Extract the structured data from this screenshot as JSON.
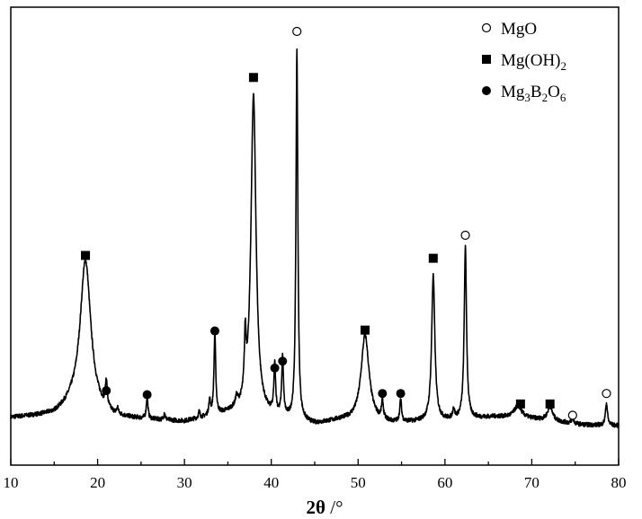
{
  "chart_data": {
    "type": "line",
    "title": "",
    "xlabel": "2θ /°",
    "xlabel_bold_part": "2θ",
    "xlabel_rest": " /°",
    "ylabel": "",
    "xlim": [
      10,
      80
    ],
    "ylim": [
      0,
      100
    ],
    "xticks": [
      10,
      20,
      30,
      40,
      50,
      60,
      70,
      80
    ],
    "y_ticks_shown": false,
    "grid": false,
    "legend_position": "top-right",
    "color": "#000000",
    "legend": [
      {
        "marker": "open-circle",
        "label": "MgO",
        "base": "MgO",
        "sub": []
      },
      {
        "marker": "filled-square",
        "label": "Mg(OH)2",
        "base": "Mg(OH)",
        "sub": [
          [
            "2",
            ""
          ]
        ]
      },
      {
        "marker": "filled-circle",
        "label": "Mg3B2O6",
        "base": "Mg",
        "sub": [
          [
            "3",
            "B"
          ],
          [
            "2",
            "O"
          ],
          [
            "6",
            ""
          ]
        ]
      }
    ],
    "baseline": [
      [
        10,
        3.2
      ],
      [
        15,
        3.8
      ],
      [
        17,
        5.5
      ],
      [
        22,
        3.0
      ],
      [
        30,
        2.2
      ],
      [
        36,
        4.5
      ],
      [
        45,
        1.5
      ],
      [
        48,
        2.5
      ],
      [
        54,
        1.8
      ],
      [
        60,
        2.5
      ],
      [
        66,
        3.5
      ],
      [
        70,
        3.0
      ],
      [
        76,
        1.5
      ],
      [
        80,
        1.3
      ]
    ],
    "peaks": [
      {
        "x": 18.6,
        "h": 37.5,
        "w": 0.75
      },
      {
        "x": 21.0,
        "h": 6.5,
        "w": 0.12
      },
      {
        "x": 22.3,
        "h": 1.5,
        "w": 0.1
      },
      {
        "x": 25.7,
        "h": 5.5,
        "w": 0.11
      },
      {
        "x": 27.7,
        "h": 1.8,
        "w": 0.1
      },
      {
        "x": 31.7,
        "h": 1.6,
        "w": 0.1
      },
      {
        "x": 32.9,
        "h": 3.5,
        "w": 0.12
      },
      {
        "x": 33.5,
        "h": 20.0,
        "w": 0.12
      },
      {
        "x": 36.0,
        "h": 2.0,
        "w": 0.15
      },
      {
        "x": 37.0,
        "h": 14.0,
        "w": 0.12
      },
      {
        "x": 37.95,
        "h": 79.0,
        "w": 0.35
      },
      {
        "x": 40.4,
        "h": 12.0,
        "w": 0.12
      },
      {
        "x": 41.3,
        "h": 14.5,
        "w": 0.12
      },
      {
        "x": 42.95,
        "h": 91.5,
        "w": 0.13
      },
      {
        "x": 50.8,
        "h": 21.5,
        "w": 0.55
      },
      {
        "x": 52.8,
        "h": 4.5,
        "w": 0.12
      },
      {
        "x": 54.9,
        "h": 5.5,
        "w": 0.12
      },
      {
        "x": 58.65,
        "h": 36.0,
        "w": 0.22
      },
      {
        "x": 61.0,
        "h": 2.5,
        "w": 0.12
      },
      {
        "x": 62.35,
        "h": 42.5,
        "w": 0.16
      },
      {
        "x": 68.4,
        "h": 3.0,
        "w": 0.5
      },
      {
        "x": 72.1,
        "h": 3.5,
        "w": 0.35
      },
      {
        "x": 74.7,
        "h": 1.5,
        "w": 0.12
      },
      {
        "x": 78.6,
        "h": 5.5,
        "w": 0.14
      }
    ],
    "markers": [
      {
        "phase": "Mg(OH)2",
        "marker": "filled-square",
        "x": 18.6,
        "y": 43.5
      },
      {
        "phase": "Mg3B2O6",
        "marker": "filled-circle",
        "x": 21.0,
        "y": 10.0
      },
      {
        "phase": "Mg3B2O6",
        "marker": "filled-circle",
        "x": 25.7,
        "y": 9.0
      },
      {
        "phase": "Mg3B2O6",
        "marker": "filled-circle",
        "x": 33.5,
        "y": 24.8
      },
      {
        "phase": "Mg(OH)2",
        "marker": "filled-square",
        "x": 37.95,
        "y": 87.6
      },
      {
        "phase": "Mg3B2O6",
        "marker": "filled-circle",
        "x": 40.4,
        "y": 15.6
      },
      {
        "phase": "Mg3B2O6",
        "marker": "filled-circle",
        "x": 41.3,
        "y": 17.3
      },
      {
        "phase": "MgO",
        "marker": "open-circle",
        "x": 42.95,
        "y": 99.0
      },
      {
        "phase": "Mg(OH)2",
        "marker": "filled-square",
        "x": 50.8,
        "y": 25.0
      },
      {
        "phase": "Mg3B2O6",
        "marker": "filled-circle",
        "x": 52.8,
        "y": 9.3
      },
      {
        "phase": "Mg3B2O6",
        "marker": "filled-circle",
        "x": 54.9,
        "y": 9.3
      },
      {
        "phase": "Mg(OH)2",
        "marker": "filled-square",
        "x": 58.65,
        "y": 42.8
      },
      {
        "phase": "MgO",
        "marker": "open-circle",
        "x": 62.35,
        "y": 48.5
      },
      {
        "phase": "Mg(OH)2",
        "marker": "filled-square",
        "x": 68.7,
        "y": 6.7
      },
      {
        "phase": "Mg(OH)2",
        "marker": "filled-square",
        "x": 72.1,
        "y": 6.7
      },
      {
        "phase": "MgO",
        "marker": "open-circle",
        "x": 74.7,
        "y": 3.9
      },
      {
        "phase": "MgO",
        "marker": "open-circle",
        "x": 78.6,
        "y": 9.3
      }
    ]
  }
}
